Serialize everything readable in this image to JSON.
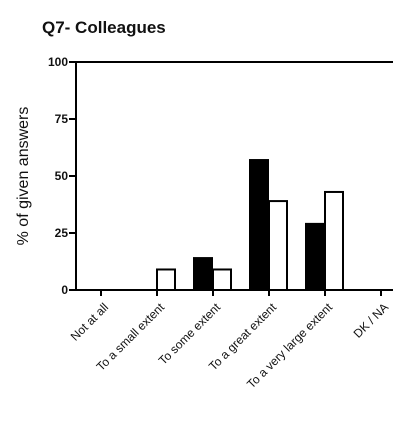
{
  "chart_data": {
    "type": "bar",
    "title": "Q7- Colleagues",
    "xlabel": "",
    "ylabel": "% of given answers",
    "ylim": [
      0,
      100
    ],
    "yticks": [
      0,
      25,
      50,
      75,
      100
    ],
    "categories": [
      "Not at all",
      "To a small extent",
      "To some extent",
      "To a great extent",
      "To a very large extent",
      "DK / NA"
    ],
    "series": [
      {
        "fill": "#000000",
        "values": [
          0,
          0,
          14,
          57,
          29,
          0
        ]
      },
      {
        "fill": "#ffffff",
        "values": [
          0,
          9,
          9,
          39,
          43,
          0
        ]
      }
    ],
    "legend": "none",
    "grid": false
  }
}
